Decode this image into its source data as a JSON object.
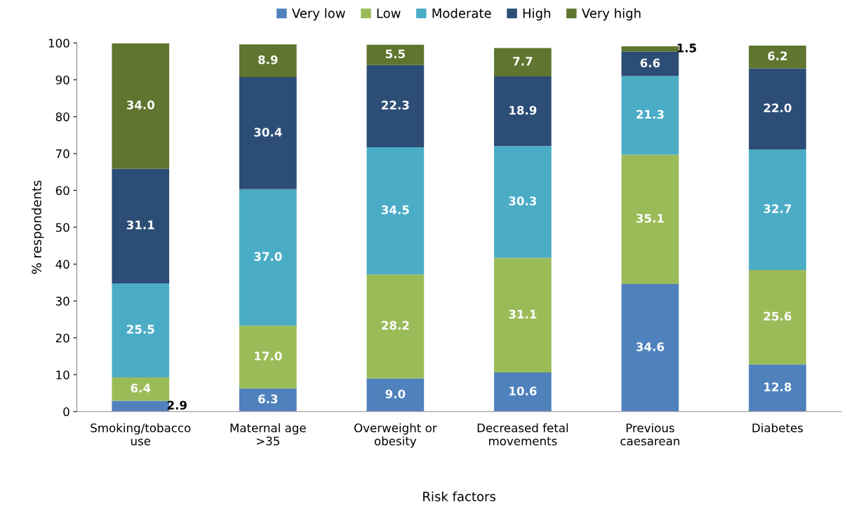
{
  "chart_data": {
    "type": "bar",
    "stacked": true,
    "xlabel": "Risk factors",
    "ylabel": "% respondents",
    "categories": [
      "Smoking/tobacco\nuse",
      "Maternal age\n>35",
      "Overweight or\nobesity",
      "Decreased fetal\nmovements",
      "Previous\ncaesarean",
      "Diabetes"
    ],
    "series": [
      {
        "name": "Very low",
        "color": "#4f81bd",
        "values": [
          2.9,
          6.3,
          9.0,
          10.6,
          34.6,
          12.8
        ],
        "value_labels": [
          "2.9",
          "6.3",
          "9.0",
          "10.6",
          "34.6",
          "12.8"
        ]
      },
      {
        "name": "Low",
        "color": "#9bbb59",
        "values": [
          6.4,
          17.0,
          28.2,
          31.1,
          35.1,
          25.6
        ],
        "value_labels": [
          "6.4",
          "17.0",
          "28.2",
          "31.1",
          "35.1",
          "25.6"
        ]
      },
      {
        "name": "Moderate",
        "color": "#4bacc6",
        "values": [
          25.5,
          37.0,
          34.5,
          30.3,
          21.3,
          32.7
        ],
        "value_labels": [
          "25.5",
          "37.0",
          "34.5",
          "30.3",
          "21.3",
          "32.7"
        ]
      },
      {
        "name": "High",
        "color": "#2c4d75",
        "values": [
          31.1,
          30.4,
          22.3,
          18.9,
          6.6,
          22.0
        ],
        "value_labels": [
          "31.1",
          "30.4",
          "22.3",
          "18.9",
          "6.6",
          "22.0"
        ]
      },
      {
        "name": "Very high",
        "color": "#5f7530",
        "values": [
          34.0,
          8.9,
          5.5,
          7.7,
          1.5,
          6.2
        ],
        "value_labels": [
          "34.0",
          "8.9",
          "5.5",
          "7.7",
          "1.5",
          "6.2"
        ]
      }
    ],
    "ylim": [
      0,
      100
    ],
    "yticks": [
      0,
      10,
      20,
      30,
      40,
      50,
      60,
      70,
      80,
      90,
      100
    ],
    "legend": "top",
    "grid": false
  }
}
